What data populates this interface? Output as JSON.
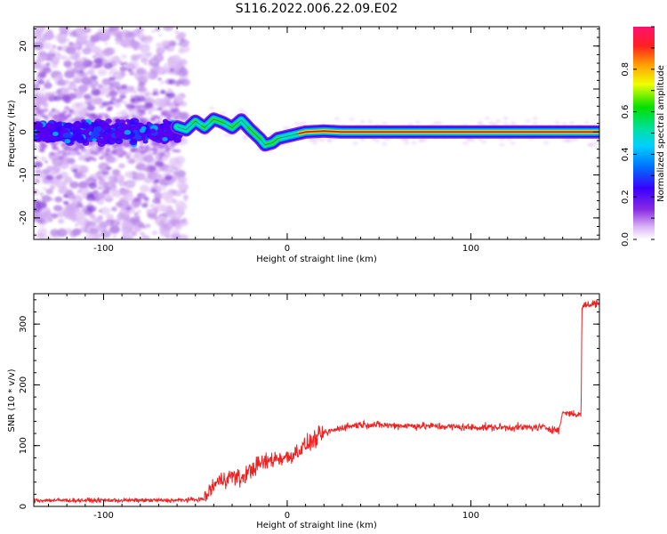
{
  "figure_title": "S116.2022.006.22.09.E02",
  "chart_data": [
    {
      "type": "heatmap",
      "title": "S116.2022.006.22.09.E02",
      "xlabel": "Height of straight line (km)",
      "ylabel": "Frequency (Hz)",
      "xlim": [
        -138,
        170
      ],
      "ylim": [
        -25,
        24.5
      ],
      "x_ticks": [
        -100,
        0,
        100
      ],
      "y_ticks": [
        -20,
        -10,
        0,
        10,
        20
      ],
      "grid": false,
      "colorbar": {
        "label": "Normalized spectral amplitude",
        "range": [
          0,
          1
        ],
        "ticks": [
          0.0,
          0.2,
          0.4,
          0.6,
          0.8
        ],
        "colormap": [
          "#ffffff",
          "#d9b3f5",
          "#8a2be2",
          "#3a00ff",
          "#0060ff",
          "#00c0ff",
          "#00e0b0",
          "#00e000",
          "#ffff00",
          "#ffa000",
          "#ff2020",
          "#ff1070"
        ]
      },
      "ridge": {
        "description_units": "x in km, frequency in Hz",
        "x": [
          -60,
          -55,
          -50,
          -45,
          -40,
          -35,
          -30,
          -25,
          -20,
          -15,
          -12,
          -8,
          -5,
          0,
          5,
          10,
          20,
          30,
          170
        ],
        "y": [
          1.2,
          0.5,
          2.5,
          1.0,
          3.0,
          2.2,
          1.0,
          2.8,
          0.5,
          -1.5,
          -3.0,
          -2.5,
          -1.5,
          -1.0,
          -0.5,
          0.0,
          0.2,
          0.0,
          0.0
        ]
      }
    },
    {
      "type": "line",
      "xlabel": "Height of straight line (km)",
      "ylabel": "SNR (10 * v/v)",
      "xlim": [
        -138,
        170
      ],
      "ylim": [
        0,
        350
      ],
      "x_ticks": [
        -100,
        0,
        100
      ],
      "y_ticks": [
        0,
        100,
        200,
        300
      ],
      "grid": false,
      "series": [
        {
          "color": "#ee2222",
          "x": [
            -138,
            -120,
            -100,
            -80,
            -60,
            -45,
            -40,
            -35,
            -30,
            -25,
            -20,
            -15,
            -10,
            -5,
            0,
            5,
            10,
            15,
            20,
            25,
            30,
            40,
            60,
            80,
            100,
            120,
            140,
            148,
            150,
            160,
            160.5,
            170
          ],
          "y": [
            10,
            10,
            10,
            10,
            10,
            12,
            35,
            45,
            50,
            45,
            60,
            70,
            75,
            80,
            80,
            90,
            100,
            110,
            120,
            125,
            130,
            135,
            133,
            132,
            130,
            130,
            130,
            125,
            155,
            150,
            330,
            335
          ]
        }
      ]
    }
  ]
}
